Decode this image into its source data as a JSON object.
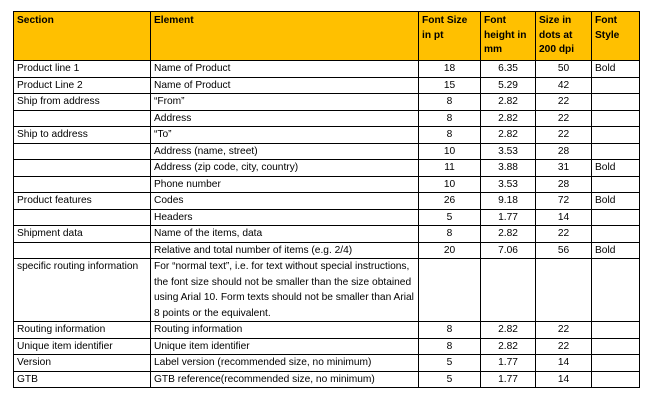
{
  "table": {
    "headers": [
      "Section",
      "Element",
      "Font Size in pt",
      "Font height in mm",
      "Size in dots at 200 dpi",
      "Font Style"
    ],
    "rows": [
      {
        "section": "Product line 1",
        "element": "Name of Product",
        "pt": "18",
        "mm": "6.35",
        "dots": "50",
        "style": "Bold"
      },
      {
        "section": "Product Line 2",
        "element": "Name of Product",
        "pt": "15",
        "mm": "5.29",
        "dots": "42",
        "style": ""
      },
      {
        "section": "Ship from address",
        "element": "“From”",
        "pt": "8",
        "mm": "2.82",
        "dots": "22",
        "style": ""
      },
      {
        "section": "",
        "element": "Address",
        "pt": "8",
        "mm": "2.82",
        "dots": "22",
        "style": ""
      },
      {
        "section": "Ship to address",
        "element": "“To”",
        "pt": "8",
        "mm": "2.82",
        "dots": "22",
        "style": ""
      },
      {
        "section": "",
        "element": "Address (name, street)",
        "pt": "10",
        "mm": "3.53",
        "dots": "28",
        "style": ""
      },
      {
        "section": "",
        "element": "Address (zip code, city, country)",
        "pt": "11",
        "mm": "3.88",
        "dots": "31",
        "style": "Bold"
      },
      {
        "section": "",
        "element": "Phone number",
        "pt": "10",
        "mm": "3.53",
        "dots": "28",
        "style": ""
      },
      {
        "section": "Product features",
        "element": "Codes",
        "pt": "26",
        "mm": "9.18",
        "dots": "72",
        "style": "Bold"
      },
      {
        "section": "",
        "element": "Headers",
        "pt": "5",
        "mm": "1.77",
        "dots": "14",
        "style": ""
      },
      {
        "section": "Shipment data",
        "element": "Name of the items, data",
        "pt": "8",
        "mm": "2.82",
        "dots": "22",
        "style": ""
      },
      {
        "section": "",
        "element": "Relative and total number of items (e.g. 2/4)",
        "pt": "20",
        "mm": "7.06",
        "dots": "56",
        "style": "Bold"
      },
      {
        "section": "specific routing information",
        "element": "For “normal text”, i.e. for text without special instructions, the font size should not be smaller than the size obtained using Arial 10. Form texts should not be smaller than Arial 8 points or the equivalent.",
        "pt": "",
        "mm": "",
        "dots": "",
        "style": "",
        "tall": true
      },
      {
        "section": "Routing information",
        "element": "Routing information",
        "pt": "8",
        "mm": "2.82",
        "dots": "22",
        "style": ""
      },
      {
        "section": "Unique item identifier",
        "element": "Unique item identifier",
        "pt": "8",
        "mm": "2.82",
        "dots": "22",
        "style": ""
      },
      {
        "section": "Version",
        "element": "Label version (recommended size, no minimum)",
        "pt": "5",
        "mm": "1.77",
        "dots": "14",
        "style": ""
      },
      {
        "section": "GTB",
        "element": "GTB reference(recommended size, no minimum)",
        "pt": "5",
        "mm": "1.77",
        "dots": "14",
        "style": ""
      }
    ]
  }
}
